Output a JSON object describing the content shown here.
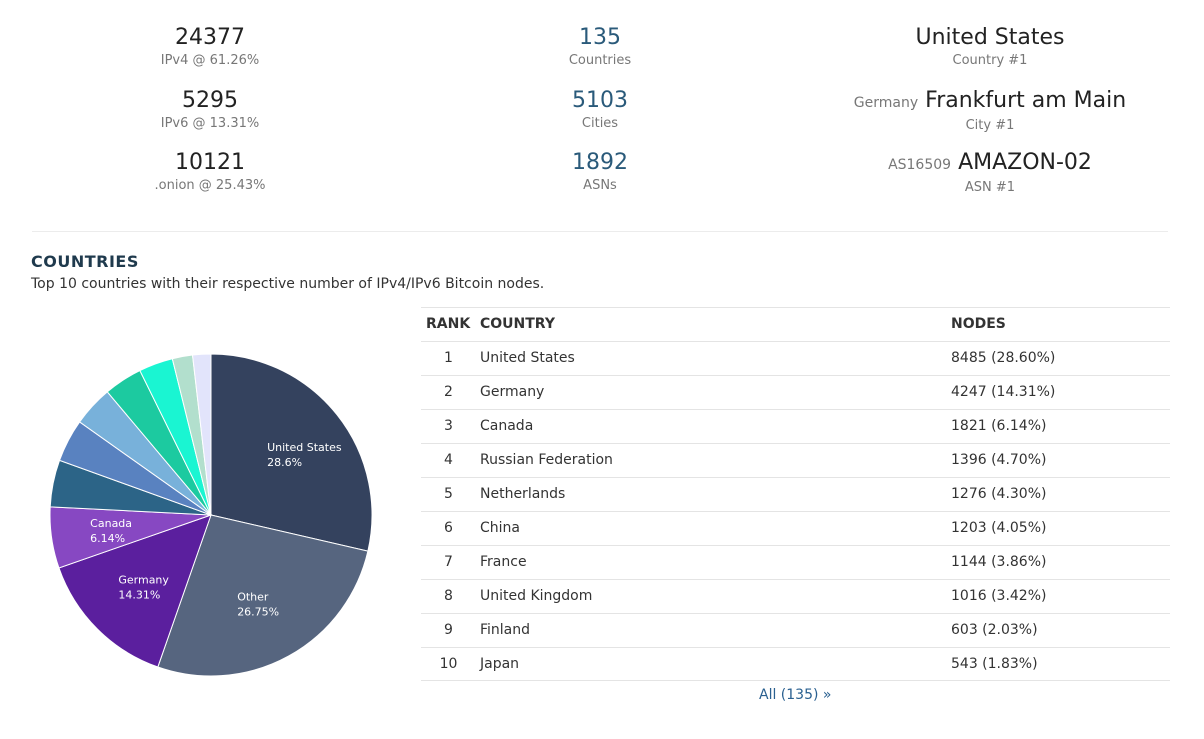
{
  "stats": {
    "ipv4": {
      "value": "24377",
      "label": "IPv4 @ 61.26%"
    },
    "ipv6": {
      "value": "5295",
      "label": "IPv6 @ 13.31%"
    },
    "onion": {
      "value": "10121",
      "label": ".onion @ 25.43%"
    },
    "countries": {
      "value": "135",
      "label": "Countries"
    },
    "cities": {
      "value": "5103",
      "label": "Cities"
    },
    "asns": {
      "value": "1892",
      "label": "ASNs"
    },
    "top_country": {
      "value": "United States",
      "label": "Country #1"
    },
    "top_city": {
      "prefix": "Germany",
      "value": "Frankfurt am Main",
      "label": "City #1"
    },
    "top_asn": {
      "prefix": "AS16509",
      "value": "AMAZON-02",
      "label": "ASN #1"
    }
  },
  "section": {
    "title": "COUNTRIES",
    "description": "Top 10 countries with their respective number of IPv4/IPv6 Bitcoin nodes."
  },
  "table": {
    "headers": {
      "rank": "RANK",
      "country": "COUNTRY",
      "nodes": "NODES"
    },
    "rows": [
      {
        "rank": "1",
        "country": "United States",
        "nodes": "8485 (28.60%)"
      },
      {
        "rank": "2",
        "country": "Germany",
        "nodes": "4247 (14.31%)"
      },
      {
        "rank": "3",
        "country": "Canada",
        "nodes": "1821 (6.14%)"
      },
      {
        "rank": "4",
        "country": "Russian Federation",
        "nodes": "1396 (4.70%)"
      },
      {
        "rank": "5",
        "country": "Netherlands",
        "nodes": "1276 (4.30%)"
      },
      {
        "rank": "6",
        "country": "China",
        "nodes": "1203 (4.05%)"
      },
      {
        "rank": "7",
        "country": "France",
        "nodes": "1144 (3.86%)"
      },
      {
        "rank": "8",
        "country": "United Kingdom",
        "nodes": "1016 (3.42%)"
      },
      {
        "rank": "9",
        "country": "Finland",
        "nodes": "603 (2.03%)"
      },
      {
        "rank": "10",
        "country": "Japan",
        "nodes": "543 (1.83%)"
      }
    ],
    "all_link": "All (135) »"
  },
  "chart_data": {
    "type": "pie",
    "slices": [
      {
        "name": "United States",
        "value": 28.6,
        "color": "#34425e",
        "label": "United States",
        "label_value": "28.6%"
      },
      {
        "name": "Other",
        "value": 26.75,
        "color": "#56657f",
        "label": "Other",
        "label_value": "26.75%"
      },
      {
        "name": "Germany",
        "value": 14.31,
        "color": "#5b1f9e",
        "label": "Germany",
        "label_value": "14.31%"
      },
      {
        "name": "Canada",
        "value": 6.14,
        "color": "#8748c2",
        "label": "Canada",
        "label_value": "6.14%"
      },
      {
        "name": "Russian Federation",
        "value": 4.7,
        "color": "#2c6487",
        "label": "",
        "label_value": ""
      },
      {
        "name": "Netherlands",
        "value": 4.3,
        "color": "#5982c0",
        "label": "",
        "label_value": ""
      },
      {
        "name": "China",
        "value": 4.05,
        "color": "#78b1da",
        "label": "",
        "label_value": ""
      },
      {
        "name": "France",
        "value": 3.86,
        "color": "#1ccaa0",
        "label": "",
        "label_value": ""
      },
      {
        "name": "United Kingdom",
        "value": 3.42,
        "color": "#1af5d2",
        "label": "",
        "label_value": ""
      },
      {
        "name": "Finland",
        "value": 2.03,
        "color": "#b2dfcd",
        "label": "",
        "label_value": ""
      },
      {
        "name": "Japan",
        "value": 1.83,
        "color": "#e2e4fb",
        "label": "",
        "label_value": ""
      }
    ]
  }
}
